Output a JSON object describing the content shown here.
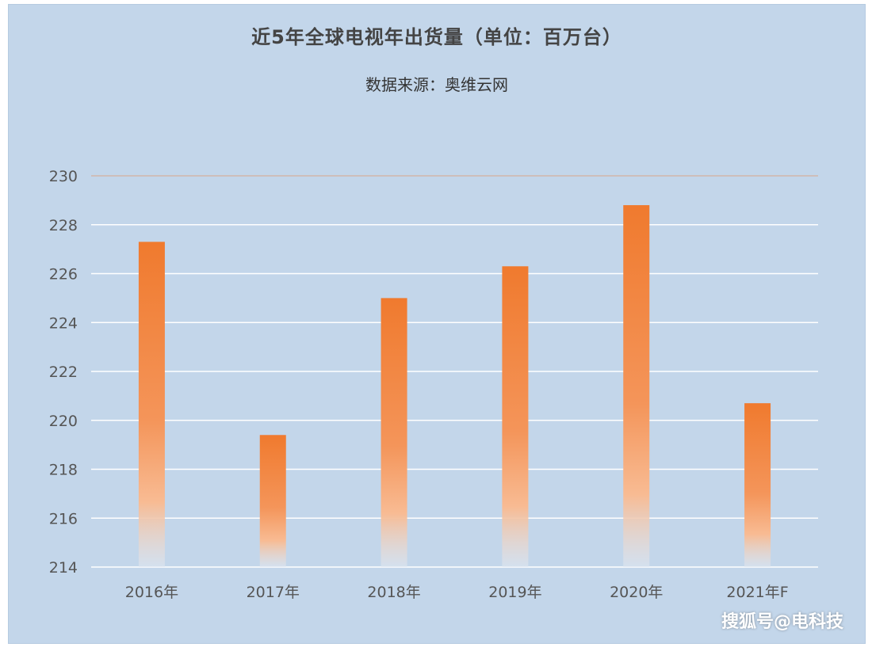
{
  "title": "近5年全球电视年出货量（单位：百万台）",
  "subtitle": "数据来源：奥维云网",
  "watermark": "搜狐号@电科技",
  "colors": {
    "background": "#c3d6ea",
    "bar_top": "#f07a2e",
    "bar_mid": "#f6a571",
    "bar_fade": "#dfe7f1",
    "gridline": "#ffffff",
    "top_gridline": "#d9a58a",
    "tick_text": "#555555"
  },
  "chart_data": {
    "type": "bar",
    "categories": [
      "2016年",
      "2017年",
      "2018年",
      "2019年",
      "2020年",
      "2021年F"
    ],
    "values": [
      227.3,
      219.4,
      225.0,
      226.3,
      228.8,
      220.7
    ],
    "title": "近5年全球电视年出货量（单位：百万台）",
    "subtitle": "数据来源：奥维云网",
    "xlabel": "",
    "ylabel": "",
    "ylim": [
      214,
      230
    ],
    "yticks": [
      214,
      216,
      218,
      220,
      222,
      224,
      226,
      228,
      230
    ],
    "grid": true,
    "legend": "none"
  }
}
